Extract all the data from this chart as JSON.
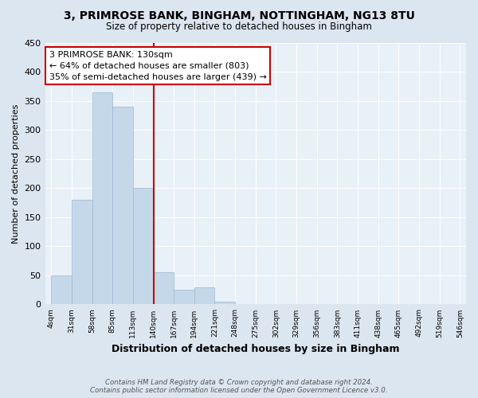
{
  "title1": "3, PRIMROSE BANK, BINGHAM, NOTTINGHAM, NG13 8TU",
  "title2": "Size of property relative to detached houses in Bingham",
  "xlabel": "Distribution of detached houses by size in Bingham",
  "ylabel": "Number of detached properties",
  "footnote1": "Contains HM Land Registry data © Crown copyright and database right 2024.",
  "footnote2": "Contains public sector information licensed under the Open Government Licence v3.0.",
  "bin_labels": [
    "4sqm",
    "31sqm",
    "58sqm",
    "85sqm",
    "113sqm",
    "140sqm",
    "167sqm",
    "194sqm",
    "221sqm",
    "248sqm",
    "275sqm",
    "302sqm",
    "329sqm",
    "356sqm",
    "383sqm",
    "411sqm",
    "438sqm",
    "465sqm",
    "492sqm",
    "519sqm",
    "546sqm"
  ],
  "bar_values": [
    50,
    180,
    365,
    340,
    200,
    55,
    25,
    30,
    5,
    0,
    0,
    0,
    0,
    0,
    0,
    0,
    0,
    0,
    0,
    0
  ],
  "bar_color": "#c5d8ea",
  "bar_edgecolor": "#9ab8d0",
  "vline_color": "#cc0000",
  "annotation_line1": "3 PRIMROSE BANK: 130sqm",
  "annotation_line2": "← 64% of detached houses are smaller (803)",
  "annotation_line3": "35% of semi-detached houses are larger (439) →",
  "annotation_box_color": "#ffffff",
  "annotation_box_edgecolor": "#cc0000",
  "ylim": [
    0,
    450
  ],
  "yticks": [
    0,
    50,
    100,
    150,
    200,
    250,
    300,
    350,
    400,
    450
  ],
  "bg_color": "#dce6f0",
  "plot_bg_color": "#e8f0f8"
}
